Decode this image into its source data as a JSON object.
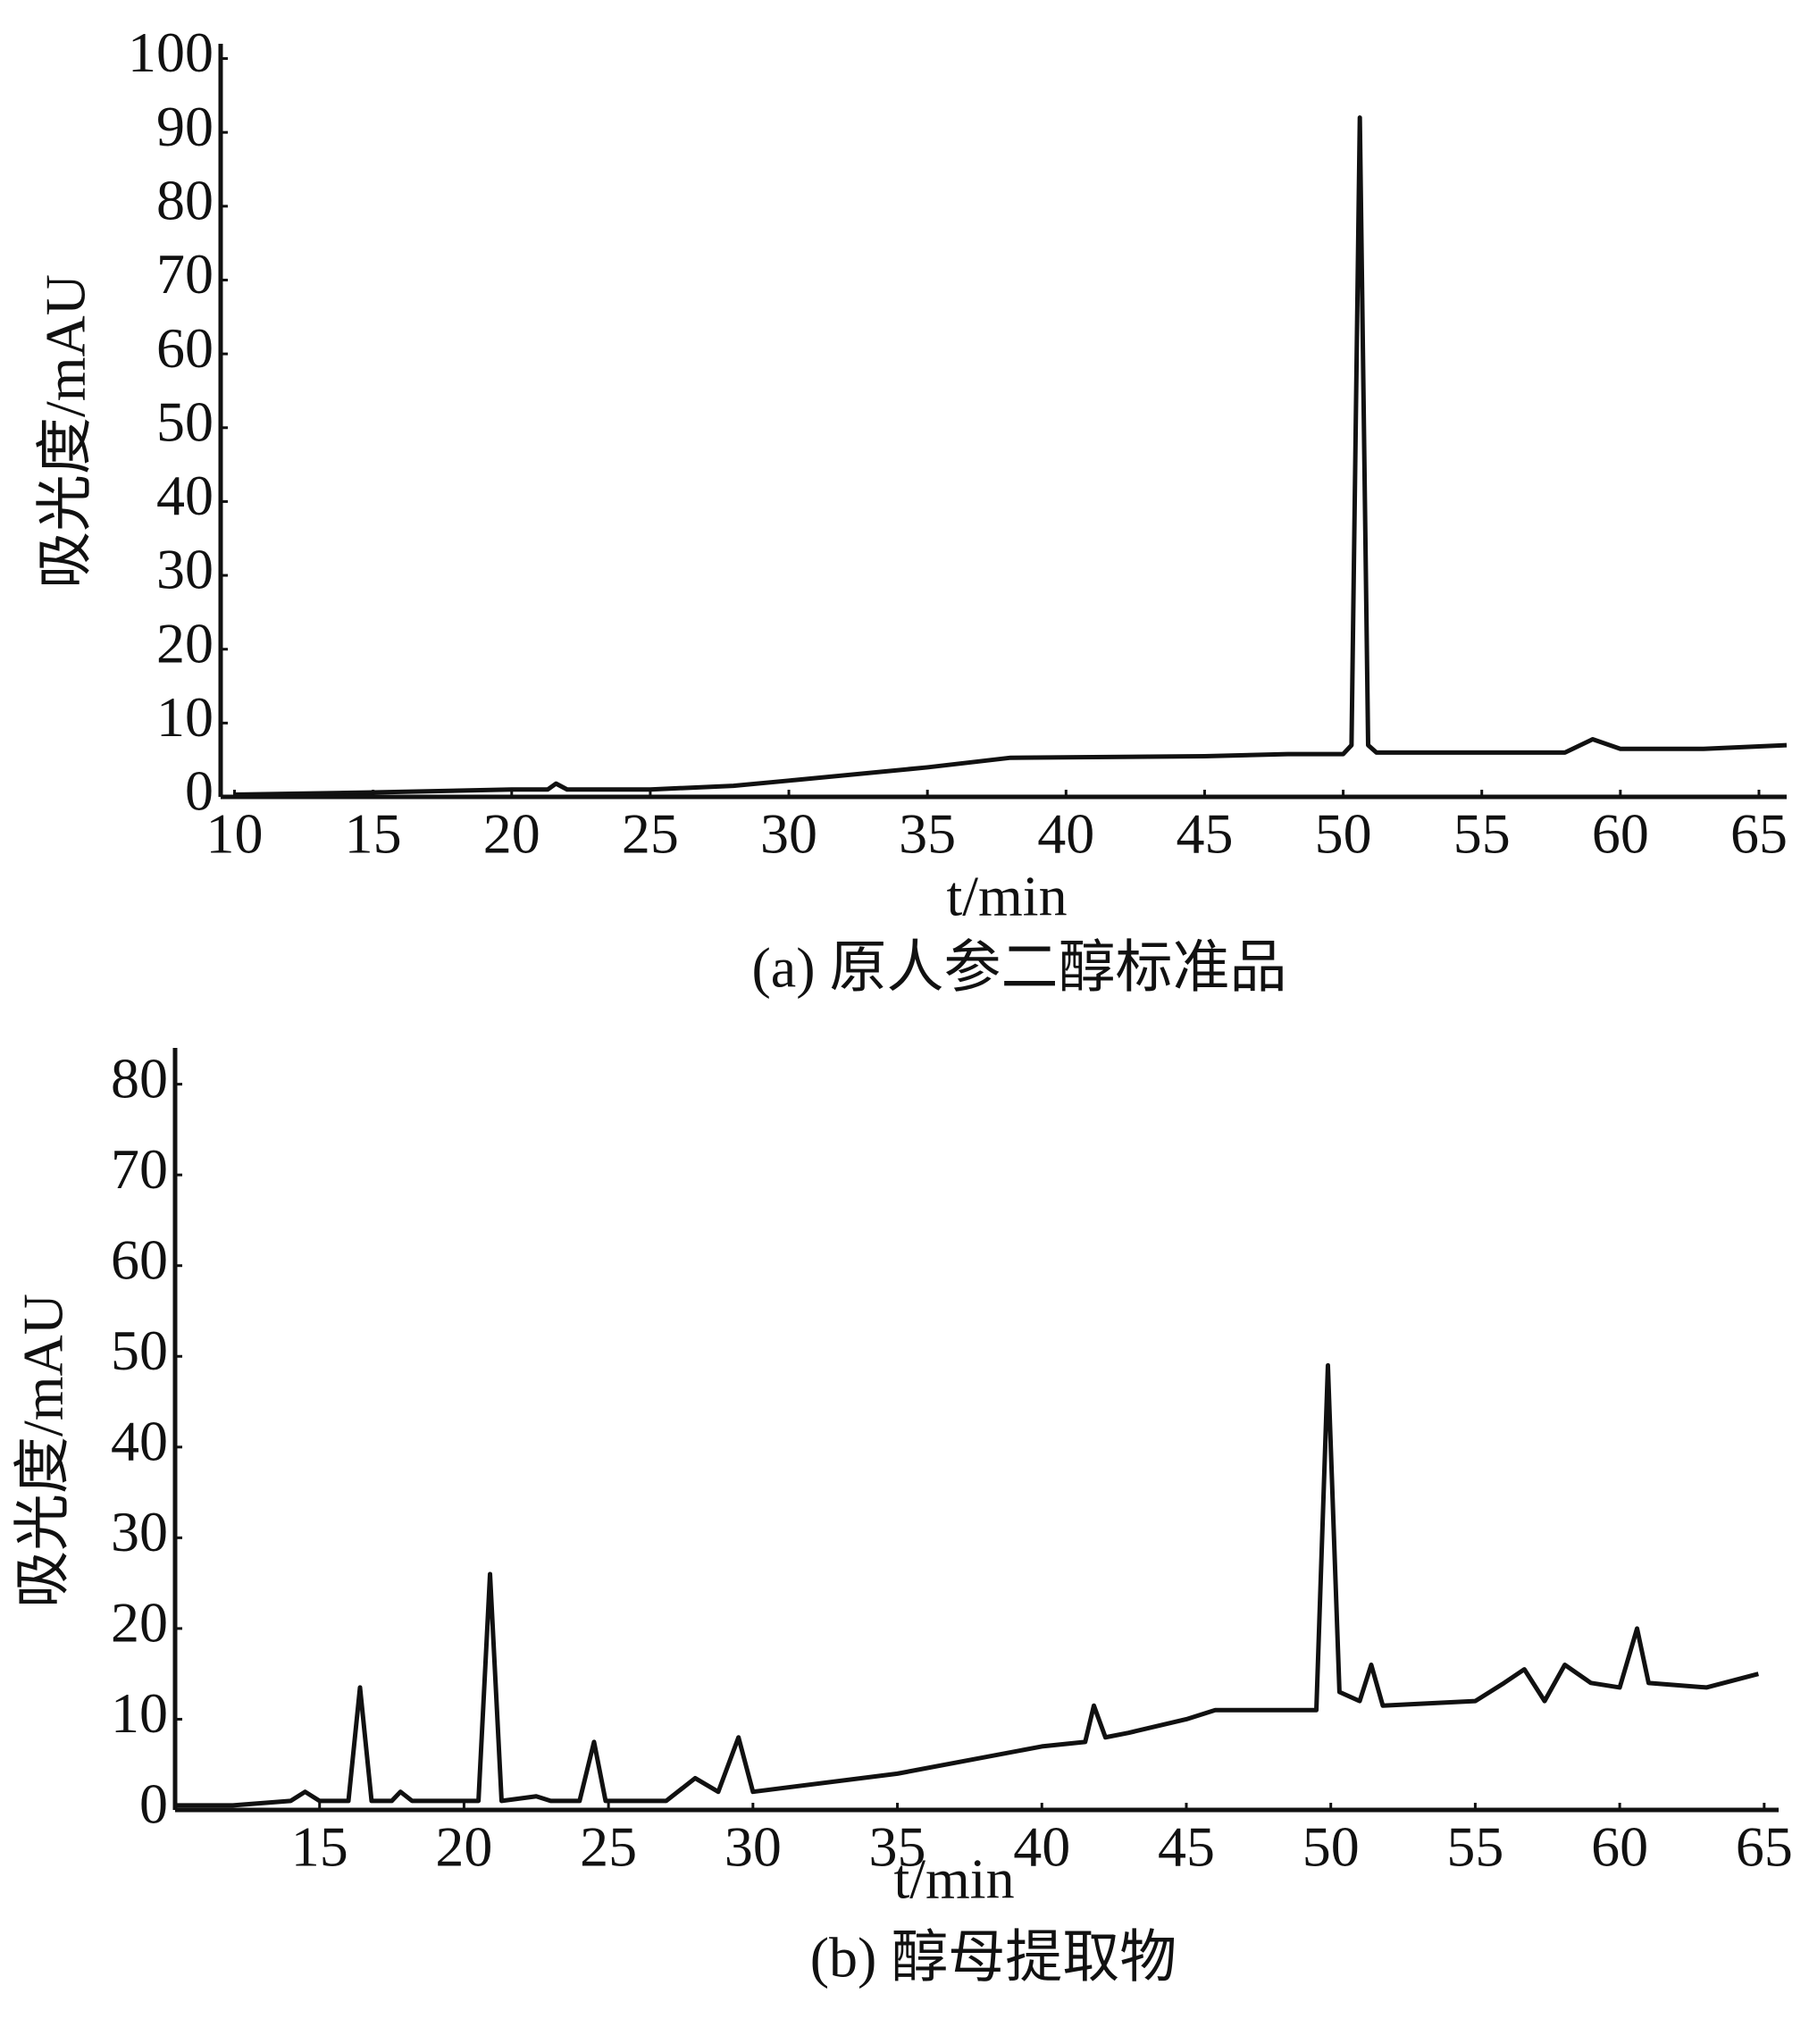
{
  "chart_data": [
    {
      "type": "line",
      "caption": "(a) 原人参二醇标准品",
      "xlabel": "t/min",
      "ylabel": "吸光度/mAU",
      "xlim": [
        9.5,
        66
      ],
      "xticks": [
        10,
        15,
        20,
        25,
        30,
        35,
        40,
        45,
        50,
        55,
        60,
        65
      ],
      "ylim": [
        0,
        102
      ],
      "yticks": [
        0,
        10,
        20,
        30,
        40,
        50,
        60,
        70,
        80,
        90,
        100
      ],
      "series": [
        {
          "color": "#111111",
          "x": [
            10,
            15,
            20,
            21.3,
            21.6,
            22,
            25,
            28,
            30,
            35,
            38,
            45,
            48,
            50,
            50.3,
            50.6,
            50.9,
            51.2,
            54,
            58,
            59,
            60,
            63,
            66
          ],
          "values": [
            0.3,
            0.6,
            1,
            1,
            1.8,
            1,
            1,
            1.5,
            2.2,
            4,
            5.3,
            5.5,
            5.8,
            5.8,
            7,
            92,
            7,
            6,
            6,
            6,
            7.8,
            6.5,
            6.5,
            7
          ]
        }
      ]
    },
    {
      "type": "line",
      "caption": "(b) 醇母提取物",
      "xlabel": "t/min",
      "ylabel": "吸光度/mAU",
      "xlim": [
        10,
        65.5
      ],
      "xticks": [
        15,
        20,
        25,
        30,
        35,
        40,
        45,
        50,
        55,
        60,
        65
      ],
      "ylim": [
        0,
        84
      ],
      "yticks": [
        0,
        10,
        20,
        30,
        40,
        50,
        60,
        70,
        80
      ],
      "series": [
        {
          "color": "#111111",
          "x": [
            10,
            12,
            14,
            14.5,
            15,
            16,
            16.4,
            16.8,
            17.5,
            17.8,
            18.2,
            20.5,
            20.9,
            21.3,
            22.5,
            23,
            24,
            24.5,
            24.9,
            27,
            28,
            28.8,
            29.5,
            30,
            35,
            40,
            41.5,
            41.8,
            42.2,
            43,
            45,
            46,
            48,
            49.5,
            49.9,
            50.3,
            51,
            51.4,
            51.8,
            55,
            56,
            56.7,
            57.4,
            58.1,
            59,
            60,
            60.6,
            61,
            63,
            64.8
          ],
          "values": [
            0.5,
            0.5,
            1,
            2,
            1,
            1,
            13.5,
            1,
            1,
            2,
            1,
            1,
            26,
            1,
            1.5,
            1,
            1,
            7.5,
            1,
            1,
            3.5,
            2,
            8,
            2,
            4,
            7,
            7.5,
            11.5,
            8,
            8.5,
            10,
            11,
            11,
            11,
            49,
            13,
            12,
            16,
            11.5,
            12,
            14,
            15.5,
            12,
            16,
            14,
            13.5,
            20,
            14,
            13.5,
            15
          ]
        }
      ]
    }
  ]
}
